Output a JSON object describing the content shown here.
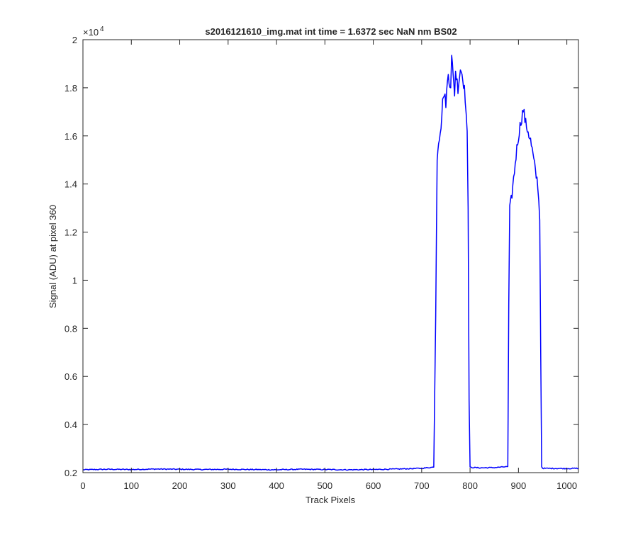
{
  "chart_data": {
    "type": "line",
    "title": "s2016121610_img.mat int time = 1.6372 sec  NaN nm BS02",
    "xlabel": "Track Pixels",
    "ylabel": "Signal (ADU) at pixel 360",
    "y_exponent_label": "×10",
    "y_exponent_power": "4",
    "xlim": [
      0,
      1024
    ],
    "ylim": [
      0.2,
      2.0
    ],
    "y_scale_multiplier": 10000,
    "x_ticks": [
      0,
      100,
      200,
      300,
      400,
      500,
      600,
      700,
      800,
      900,
      1000
    ],
    "x_tick_labels": [
      "0",
      "100",
      "200",
      "300",
      "400",
      "500",
      "600",
      "700",
      "800",
      "900",
      "1000"
    ],
    "y_ticks": [
      0.2,
      0.4,
      0.6,
      0.8,
      1.0,
      1.2,
      1.4,
      1.6,
      1.8,
      2.0
    ],
    "y_tick_labels": [
      "0.2",
      "0.4",
      "0.6",
      "0.8",
      "1",
      "1.2",
      "1.4",
      "1.6",
      "1.8",
      "2"
    ],
    "grid": false,
    "line_color": "#0000ff",
    "series": [
      {
        "x": [
          0,
          50,
          100,
          150,
          200,
          250,
          300,
          350,
          400,
          450,
          500,
          550,
          600,
          650,
          700,
          725,
          729,
          732,
          735,
          740,
          745,
          750,
          755,
          760,
          762,
          765,
          768,
          770,
          775,
          780,
          785,
          790,
          794,
          796,
          798,
          800,
          820,
          850,
          878,
          880,
          882,
          885,
          890,
          895,
          900,
          905,
          910,
          915,
          920,
          925,
          930,
          935,
          940,
          944,
          946,
          948,
          950,
          1000,
          1024
        ],
        "y": [
          0.212,
          0.214,
          0.213,
          0.215,
          0.214,
          0.213,
          0.214,
          0.213,
          0.212,
          0.214,
          0.213,
          0.212,
          0.213,
          0.215,
          0.218,
          0.223,
          0.85,
          1.52,
          1.58,
          1.65,
          1.78,
          1.74,
          1.86,
          1.8,
          1.95,
          1.84,
          1.78,
          1.87,
          1.8,
          1.88,
          1.85,
          1.76,
          1.62,
          1.3,
          0.5,
          0.222,
          0.22,
          0.221,
          0.225,
          0.9,
          1.29,
          1.33,
          1.42,
          1.52,
          1.6,
          1.66,
          1.71,
          1.65,
          1.62,
          1.58,
          1.52,
          1.45,
          1.4,
          1.25,
          0.7,
          0.225,
          0.218,
          0.217,
          0.218
        ]
      }
    ]
  }
}
